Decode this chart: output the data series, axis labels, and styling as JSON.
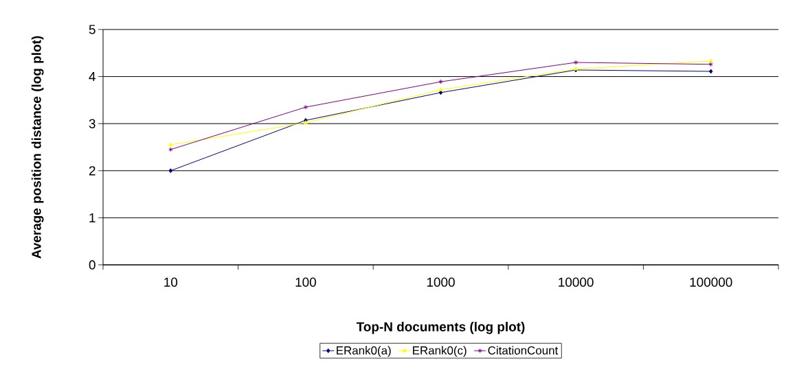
{
  "chart_data": {
    "type": "line",
    "xlabel": "Top-N documents (log plot)",
    "ylabel": "Average position distance (log plot)",
    "categories": [
      "10",
      "100",
      "1000",
      "10000",
      "100000"
    ],
    "series": [
      {
        "name": "ERank0(a)",
        "color": "#000080",
        "marker": "diamond",
        "values": [
          2.0,
          3.07,
          3.66,
          4.14,
          4.11
        ]
      },
      {
        "name": "ERank0(c)",
        "color": "#ffff00",
        "marker": "triangle",
        "values": [
          2.55,
          3.02,
          3.72,
          4.16,
          4.33
        ]
      },
      {
        "name": "CitationCount",
        "color": "#800080",
        "marker": "cross",
        "values": [
          2.45,
          3.35,
          3.89,
          4.3,
          4.26
        ]
      }
    ],
    "ylim": [
      0,
      5
    ],
    "yticks": [
      0,
      1,
      2,
      3,
      4,
      5
    ],
    "grid": "y",
    "legend": "bottom",
    "line_style": "solid"
  }
}
